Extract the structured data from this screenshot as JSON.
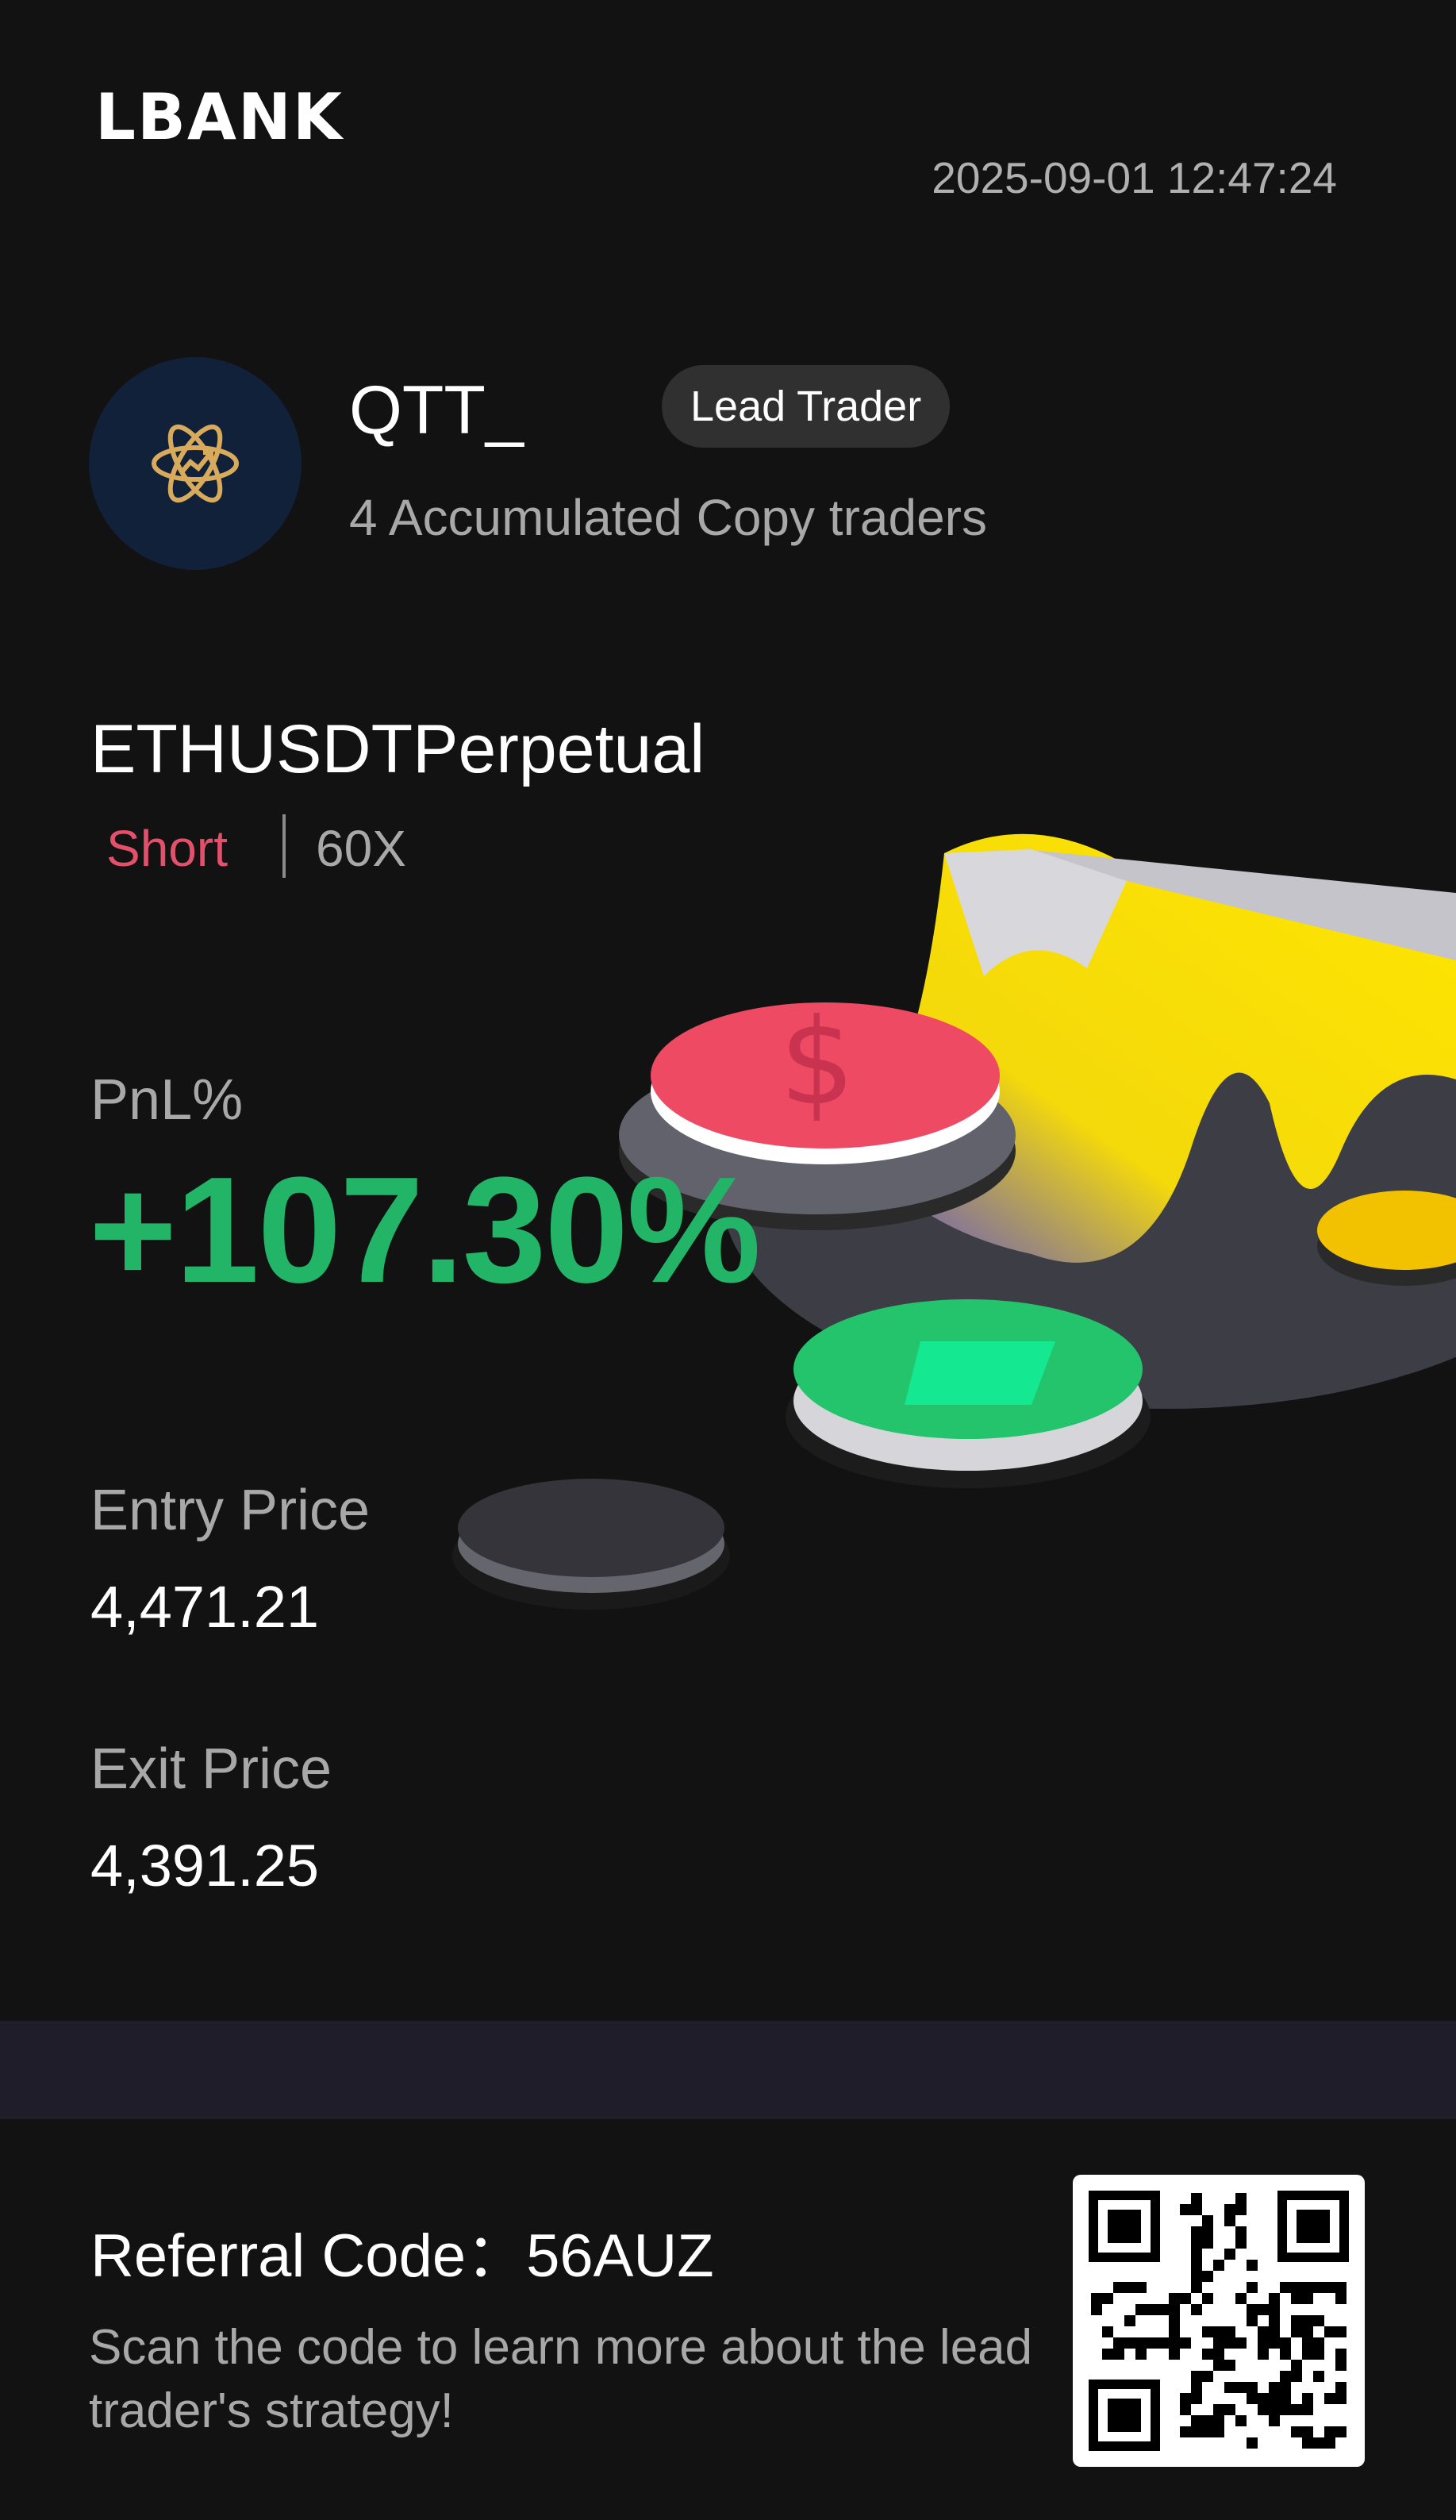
{
  "brand": {
    "logo_text": "LBANK"
  },
  "header": {
    "timestamp": "2025-09-01 12:47:24"
  },
  "trader": {
    "name": "QTT_",
    "badge": "Lead Trader",
    "copy_traders": "4 Accumulated Copy traders",
    "avatar_icon": "atom-chart-icon"
  },
  "position": {
    "pair": "ETHUSDTPerpetual",
    "direction": "Short",
    "leverage": "60X"
  },
  "pnl": {
    "label": "PnL%",
    "value": "+107.30%"
  },
  "prices": {
    "entry_label": "Entry Price",
    "entry_value": "4,471.21",
    "exit_label": "Exit Price",
    "exit_value": "4,391.25"
  },
  "referral": {
    "label": "Referral Code：56AUZ",
    "scan_text": "Scan the code to learn more about the lead trader's strategy!",
    "qr_icon": "qr-code-icon"
  },
  "colors": {
    "background": "#121212",
    "profit": "#22b467",
    "short": "#e2506c",
    "band": "#1e1d29"
  }
}
